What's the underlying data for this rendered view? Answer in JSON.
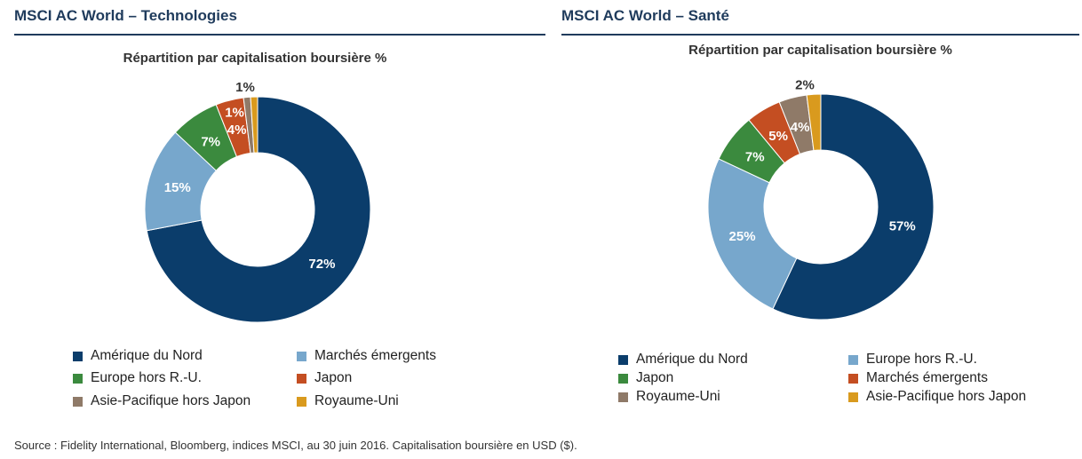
{
  "footer": {
    "source": "Source : Fidelity International, Bloomberg, indices MSCI, au 30 juin 2016. Capitalisation boursière en USD ($)."
  },
  "chart_data": [
    {
      "type": "pie",
      "donut": true,
      "panel_title": "MSCI AC World – Technologies",
      "title": "Répartition par capitalisation boursière %",
      "legend_placement": "bottom",
      "start_angle_deg": 0,
      "slices": [
        {
          "name": "Amérique du Nord",
          "value": 72,
          "label": "72%",
          "color": "#0b3d6b",
          "label_color": "#ffffff"
        },
        {
          "name": "Marchés émergents",
          "value": 15,
          "label": "15%",
          "color": "#77a7cc",
          "label_color": "#ffffff"
        },
        {
          "name": "Europe hors R.-U.",
          "value": 7,
          "label": "7%",
          "color": "#3b8a3e",
          "label_color": "#ffffff"
        },
        {
          "name": "Japon",
          "value": 4,
          "label": "4%",
          "color": "#c44e22",
          "label_color": "#ffffff"
        },
        {
          "name": "Asie-Pacifique hors Japon",
          "value": 1,
          "label": "1%",
          "color": "#8f7a68",
          "label_color": "#ffffff"
        },
        {
          "name": "Royaume-Uni",
          "value": 1,
          "label": "1%",
          "color": "#d99a1e",
          "label_color": "#333333"
        }
      ],
      "legend": [
        "Amérique du Nord",
        "Marchés émergents",
        "Europe hors R.-U.",
        "Japon",
        "Asie-Pacifique hors Japon",
        "Royaume-Uni"
      ]
    },
    {
      "type": "pie",
      "donut": true,
      "panel_title": "MSCI AC World – Santé",
      "title": "Répartition par capitalisation boursière %",
      "legend_placement": "bottom",
      "start_angle_deg": 0,
      "slices": [
        {
          "name": "Amérique du Nord",
          "value": 57,
          "label": "57%",
          "color": "#0b3d6b",
          "label_color": "#ffffff"
        },
        {
          "name": "Europe hors R.-U.",
          "value": 25,
          "label": "25%",
          "color": "#77a7cc",
          "label_color": "#ffffff"
        },
        {
          "name": "Japon",
          "value": 7,
          "label": "7%",
          "color": "#3b8a3e",
          "label_color": "#ffffff"
        },
        {
          "name": "Marchés émergents",
          "value": 5,
          "label": "5%",
          "color": "#c44e22",
          "label_color": "#ffffff"
        },
        {
          "name": "Royaume-Uni",
          "value": 4,
          "label": "4%",
          "color": "#8f7a68",
          "label_color": "#ffffff"
        },
        {
          "name": "Asie-Pacifique hors Japon",
          "value": 2,
          "label": "2%",
          "color": "#d99a1e",
          "label_color": "#333333"
        }
      ],
      "legend": [
        "Amérique du Nord",
        "Europe hors R.-U.",
        "Japon",
        "Marchés émergents",
        "Royaume-Uni",
        "Asie-Pacifique hors Japon"
      ]
    }
  ]
}
